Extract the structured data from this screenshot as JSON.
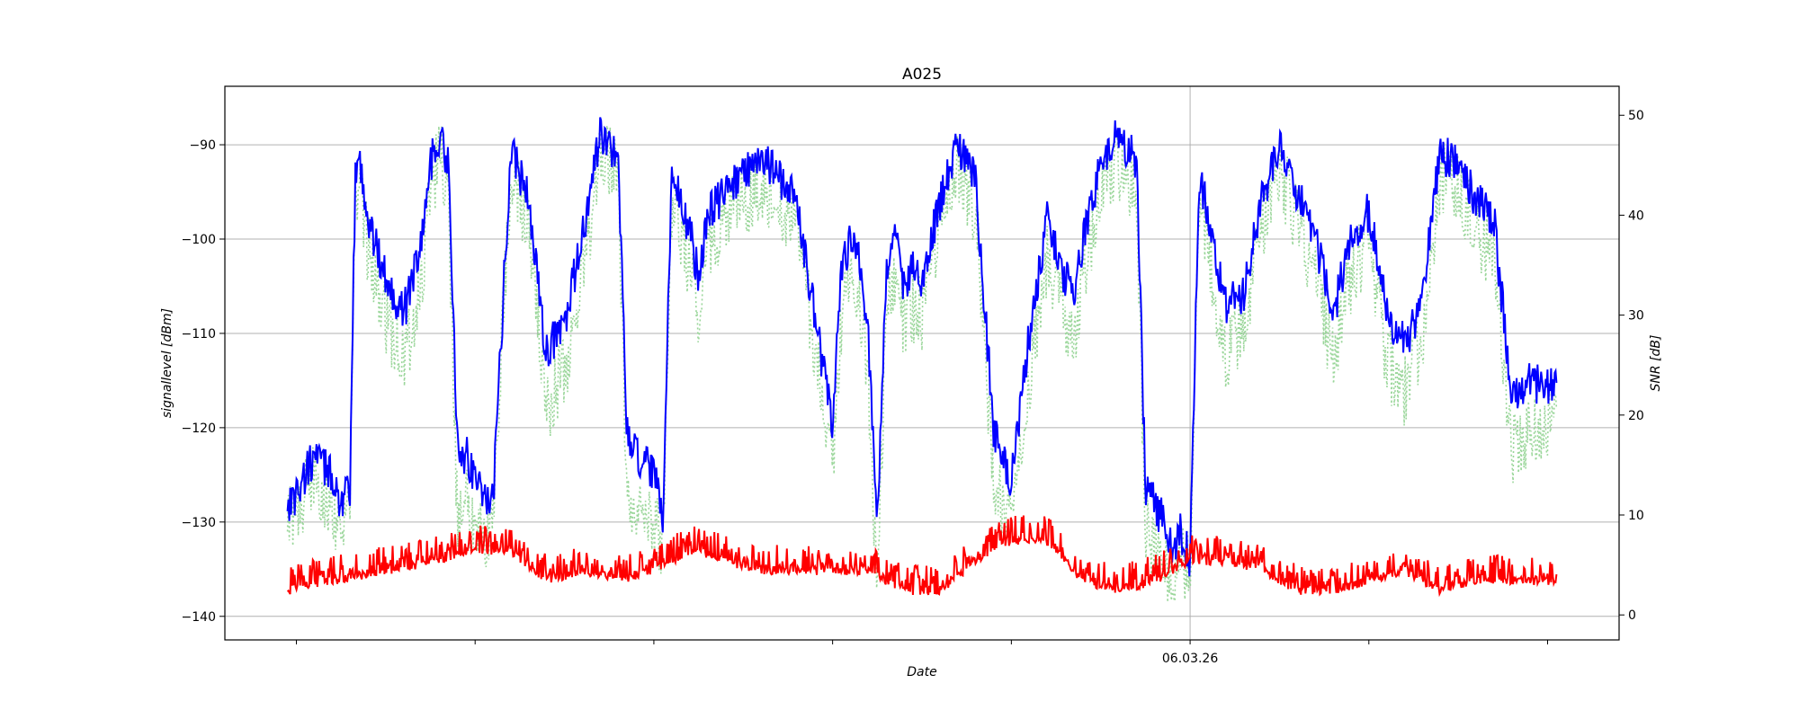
{
  "chart_data": {
    "type": "line",
    "title": "A025",
    "xlabel": "Date",
    "ylabel_left": "signallevel [dBm]",
    "ylabel_right": "SNR [dB]",
    "xlim": [
      -0.4,
      7.4
    ],
    "ylim_left": [
      -142.5,
      -83.8
    ],
    "ylim_right": [
      -2.5,
      52.9
    ],
    "x_ticks": [
      0,
      1,
      2,
      3,
      4,
      5,
      6,
      7
    ],
    "x_tick_labels": [
      "",
      "",
      "",
      "",
      "",
      "06.03.26",
      "",
      ""
    ],
    "x_gridline_at": 5,
    "y_left_ticks": [
      -90,
      -100,
      -110,
      -120,
      -130,
      -140
    ],
    "y_left_tick_labels": [
      "−90",
      "−100",
      "−110",
      "−120",
      "−130",
      "−140"
    ],
    "y_right_ticks": [
      50,
      40,
      30,
      20,
      10,
      0
    ],
    "y_right_tick_labels": [
      "50",
      "40",
      "30",
      "20",
      "10",
      "0"
    ],
    "grid": "horizontal-left-axis",
    "series": [
      {
        "axis": "left",
        "style": "solid",
        "color": "#0000ff",
        "x": [
          -0.05,
          0.0,
          0.1,
          0.2,
          0.25,
          0.3,
          0.33,
          0.36,
          0.4,
          0.5,
          0.6,
          0.7,
          0.75,
          0.8,
          0.85,
          0.9,
          0.95,
          1.0,
          1.05,
          1.1,
          1.2,
          1.3,
          1.35,
          1.38,
          1.4,
          1.5,
          1.6,
          1.7,
          1.8,
          1.85,
          1.9,
          1.95,
          2.0,
          2.05,
          2.1,
          2.15,
          2.2,
          2.25,
          2.3,
          2.32,
          2.4,
          2.6,
          2.8,
          3.0,
          3.05,
          3.1,
          3.15,
          3.2,
          3.25,
          3.3,
          3.35,
          3.4,
          3.45,
          3.5,
          3.6,
          3.7,
          3.8,
          3.9,
          4.0,
          4.1,
          4.2,
          4.3,
          4.35,
          4.4,
          4.5,
          4.6,
          4.7,
          4.75,
          4.85,
          4.9,
          4.95,
          5.0,
          5.05,
          5.1,
          5.15,
          5.2,
          5.3,
          5.4,
          5.5,
          5.6,
          5.7,
          5.8,
          5.9,
          6.0,
          6.1,
          6.2,
          6.3,
          6.35,
          6.4,
          6.5,
          6.6,
          6.7,
          6.8,
          6.9,
          7.0,
          7.05
        ],
        "y": [
          -128,
          -127,
          -123,
          -125,
          -128,
          -127,
          -93,
          -92,
          -98,
          -104,
          -108,
          -100,
          -92,
          -89,
          -92,
          -122,
          -123,
          -125,
          -127,
          -128,
          -90,
          -96,
          -104,
          -110,
          -112,
          -109,
          -100,
          -89,
          -91,
          -121,
          -123,
          -124,
          -125,
          -130,
          -93,
          -96,
          -99,
          -104,
          -97,
          -97,
          -95,
          -91,
          -96,
          -120,
          -103,
          -100,
          -102,
          -110,
          -131,
          -103,
          -100,
          -105,
          -103,
          -104,
          -96,
          -90,
          -94,
          -120,
          -126,
          -110,
          -98,
          -104,
          -106,
          -100,
          -92,
          -89,
          -92,
          -126,
          -130,
          -133,
          -131,
          -134,
          -93,
          -97,
          -103,
          -107,
          -106,
          -96,
          -90,
          -95,
          -100,
          -108,
          -100,
          -97,
          -108,
          -111,
          -107,
          -98,
          -91,
          -92,
          -96,
          -98,
          -117,
          -115,
          -116,
          -115
        ],
        "noise": 2.2
      },
      {
        "axis": "left",
        "style": "dotted",
        "color": "#8fd28f",
        "x": [
          -0.05,
          0.0,
          0.1,
          0.2,
          0.25,
          0.3,
          0.33,
          0.36,
          0.4,
          0.5,
          0.6,
          0.7,
          0.75,
          0.8,
          0.85,
          0.9,
          0.95,
          1.0,
          1.05,
          1.1,
          1.2,
          1.3,
          1.35,
          1.38,
          1.4,
          1.5,
          1.6,
          1.7,
          1.8,
          1.85,
          1.9,
          1.95,
          2.0,
          2.05,
          2.1,
          2.15,
          2.2,
          2.25,
          2.3,
          2.32,
          2.4,
          2.6,
          2.8,
          3.0,
          3.05,
          3.1,
          3.15,
          3.2,
          3.25,
          3.3,
          3.35,
          3.4,
          3.45,
          3.5,
          3.6,
          3.7,
          3.8,
          3.9,
          4.0,
          4.1,
          4.2,
          4.3,
          4.35,
          4.4,
          4.5,
          4.6,
          4.7,
          4.75,
          4.85,
          4.9,
          4.95,
          5.0,
          5.05,
          5.1,
          5.15,
          5.2,
          5.3,
          5.4,
          5.5,
          5.6,
          5.7,
          5.8,
          5.9,
          6.0,
          6.1,
          6.2,
          6.3,
          6.35,
          6.4,
          6.5,
          6.6,
          6.7,
          6.8,
          6.9,
          7.0,
          7.05
        ],
        "y": [
          -130,
          -129,
          -125,
          -128,
          -131,
          -128,
          -95,
          -95,
          -101,
          -108,
          -113,
          -105,
          -95,
          -91,
          -95,
          -129,
          -128,
          -131,
          -132,
          -129,
          -93,
          -99,
          -108,
          -116,
          -118,
          -114,
          -104,
          -91,
          -93,
          -127,
          -129,
          -129,
          -130,
          -132,
          -96,
          -99,
          -103,
          -108,
          -100,
          -100,
          -98,
          -94,
          -99,
          -124,
          -108,
          -104,
          -106,
          -115,
          -138,
          -107,
          -104,
          -109,
          -107,
          -108,
          -99,
          -92,
          -97,
          -125,
          -131,
          -115,
          -102,
          -108,
          -110,
          -104,
          -95,
          -92,
          -95,
          -131,
          -134,
          -136,
          -134,
          -135,
          -96,
          -100,
          -107,
          -112,
          -110,
          -99,
          -93,
          -98,
          -104,
          -113,
          -104,
          -100,
          -113,
          -116,
          -111,
          -102,
          -93,
          -95,
          -99,
          -102,
          -122,
          -120,
          -119,
          -119
        ],
        "noise": 4.0
      },
      {
        "axis": "right",
        "style": "solid",
        "color": "#ff0000",
        "x": [
          -0.05,
          0.2,
          0.5,
          0.8,
          1.0,
          1.2,
          1.4,
          1.6,
          1.8,
          2.0,
          2.2,
          2.4,
          2.6,
          2.8,
          3.0,
          3.2,
          3.4,
          3.6,
          3.8,
          4.0,
          4.2,
          4.4,
          4.6,
          4.8,
          5.0,
          5.2,
          5.4,
          5.6,
          5.8,
          6.0,
          6.2,
          6.4,
          6.6,
          6.8,
          7.05
        ],
        "y": [
          2,
          3,
          4,
          5,
          6,
          6,
          3,
          4,
          3,
          4,
          6,
          5,
          4,
          4,
          4,
          4,
          2,
          2,
          5,
          7,
          7,
          3,
          2,
          3,
          5,
          5,
          4,
          2,
          2,
          3,
          4,
          2,
          3,
          3,
          3
        ],
        "noise": 3.0
      }
    ]
  }
}
